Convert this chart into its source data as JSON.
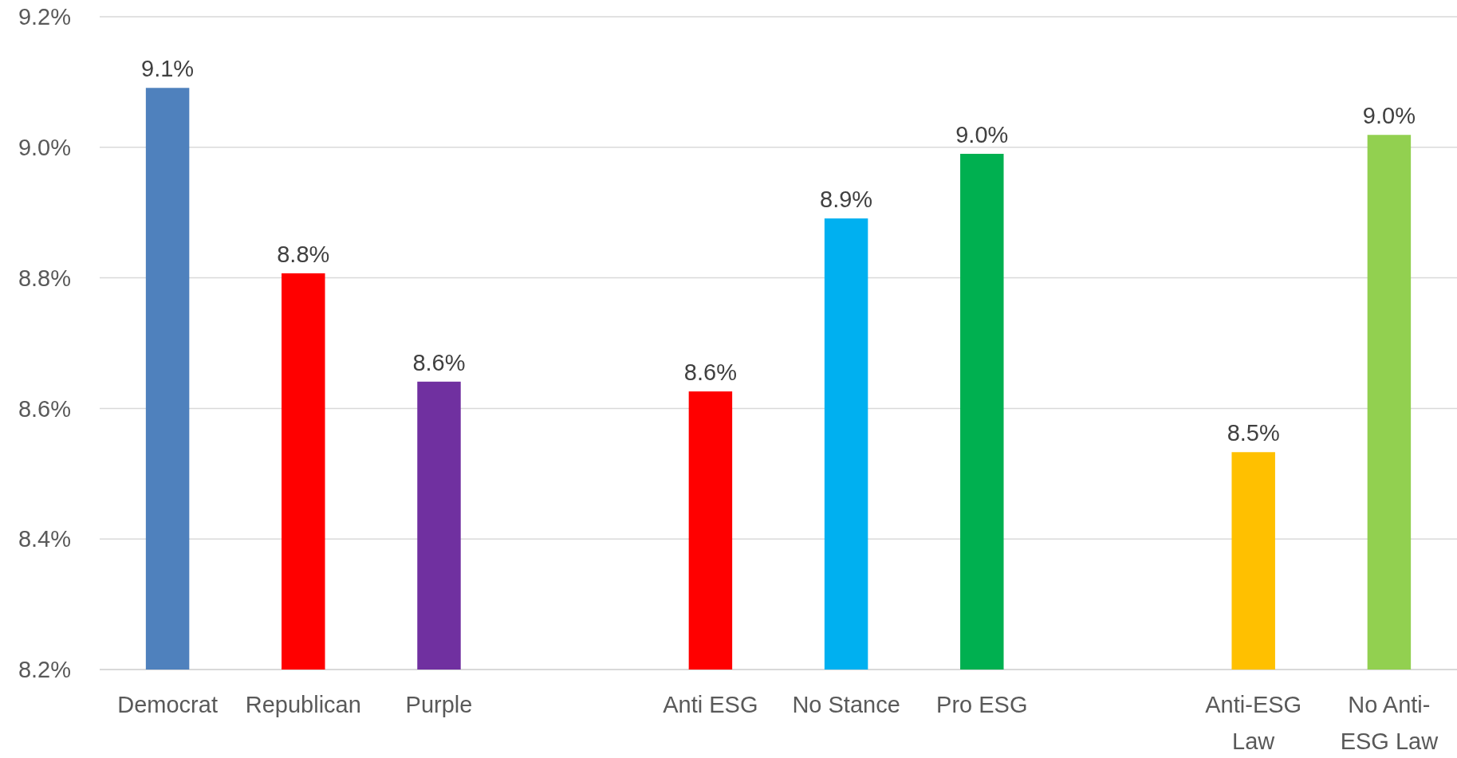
{
  "chart_data": {
    "type": "bar",
    "categories": [
      "Democrat",
      "Republican",
      "Purple",
      null,
      "Anti ESG",
      "No Stance",
      "Pro ESG",
      null,
      "Anti-ESG Law",
      "No Anti-ESG Law"
    ],
    "values": [
      9.091,
      8.807,
      8.641,
      null,
      8.626,
      8.891,
      8.99,
      null,
      8.533,
      9.019
    ],
    "colors": [
      "#4f81bd",
      "#ff0000",
      "#7030a0",
      null,
      "#ff0000",
      "#00b0f0",
      "#00b050",
      null,
      "#ffc000",
      "#92d050"
    ],
    "value_labels": [
      "9.1%",
      "8.8%",
      "8.6%",
      null,
      "8.6%",
      "8.9%",
      "9.0%",
      null,
      "8.5%",
      "9.0%"
    ],
    "ylim": [
      8.2,
      9.2
    ],
    "yticks": [
      {
        "value": 8.2,
        "label": "8.2%"
      },
      {
        "value": 8.4,
        "label": "8.4%"
      },
      {
        "value": 8.6,
        "label": "8.6%"
      },
      {
        "value": 8.8,
        "label": "8.8%"
      },
      {
        "value": 9.0,
        "label": "9.0%"
      },
      {
        "value": 9.2,
        "label": "9.2%"
      }
    ],
    "grid": "y"
  }
}
